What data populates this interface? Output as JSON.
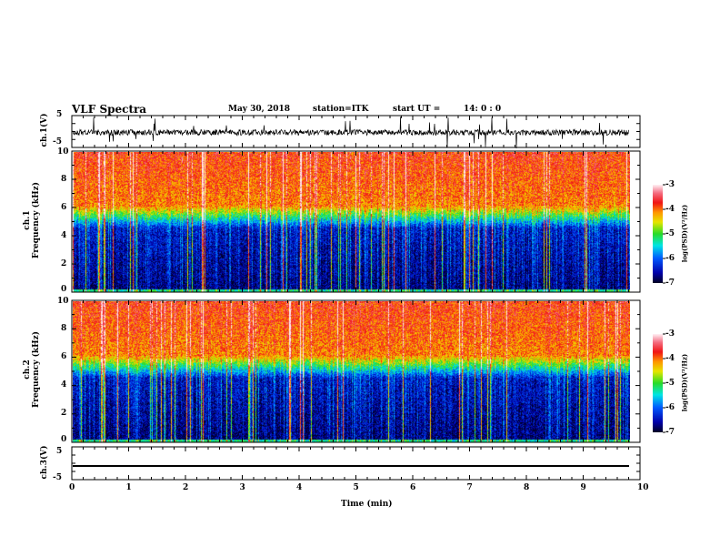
{
  "header": {
    "title": "VLF Spectra",
    "date": "May 30, 2018",
    "station": "station=ITK",
    "start_label": "start  UT  =",
    "start_time": "14: 0 : 0"
  },
  "chart_data": [
    {
      "type": "line",
      "name": "ch1-waveform",
      "ylabel": "ch.1(V)",
      "ylim": [
        -5,
        5
      ],
      "yticks": [
        "5",
        "-5"
      ],
      "xlim": [
        0,
        10
      ],
      "description_values": {
        "baseline": 0,
        "noise_amplitude": 1,
        "spikes_max": 5
      }
    },
    {
      "type": "heatmap",
      "name": "ch1-spectrogram",
      "ylabel": "ch.1\nFrequency  (kHz)",
      "ylabel_line1": "ch.1",
      "ylabel_line2": "Frequency  (kHz)",
      "ylim": [
        0,
        10
      ],
      "yticks": [
        "0",
        "2",
        "4",
        "6",
        "8",
        "10"
      ],
      "xlim": [
        0,
        10
      ],
      "data_end_min": 9.8,
      "colorbar": {
        "label": "log(PSD)(V²/Hz)",
        "range": [
          -7,
          -3
        ],
        "ticks": [
          "-3",
          "-4",
          "-5",
          "-6",
          "-7"
        ]
      }
    },
    {
      "type": "heatmap",
      "name": "ch2-spectrogram",
      "ylabel_line1": "ch.2",
      "ylabel_line2": "Frequency  (kHz)",
      "ylim": [
        0,
        10
      ],
      "yticks": [
        "0",
        "2",
        "4",
        "6",
        "8",
        "10"
      ],
      "xlim": [
        0,
        10
      ],
      "data_end_min": 9.8,
      "colorbar": {
        "label": "log(PSD)(V²/Hz)",
        "range": [
          -7,
          -3
        ],
        "ticks": [
          "-3",
          "-4",
          "-5",
          "-6",
          "-7"
        ]
      }
    },
    {
      "type": "line",
      "name": "ch3-waveform",
      "ylabel": "ch.3(V)",
      "ylim": [
        -5,
        5
      ],
      "yticks": [
        "5",
        "-5"
      ],
      "xlim": [
        0,
        10
      ],
      "description_values": {
        "baseline": -1
      }
    }
  ],
  "xaxis": {
    "label": "Time  (min)",
    "ticks": [
      "0",
      "1",
      "2",
      "3",
      "4",
      "5",
      "6",
      "7",
      "8",
      "9",
      "10"
    ],
    "range": [
      0,
      10
    ]
  }
}
